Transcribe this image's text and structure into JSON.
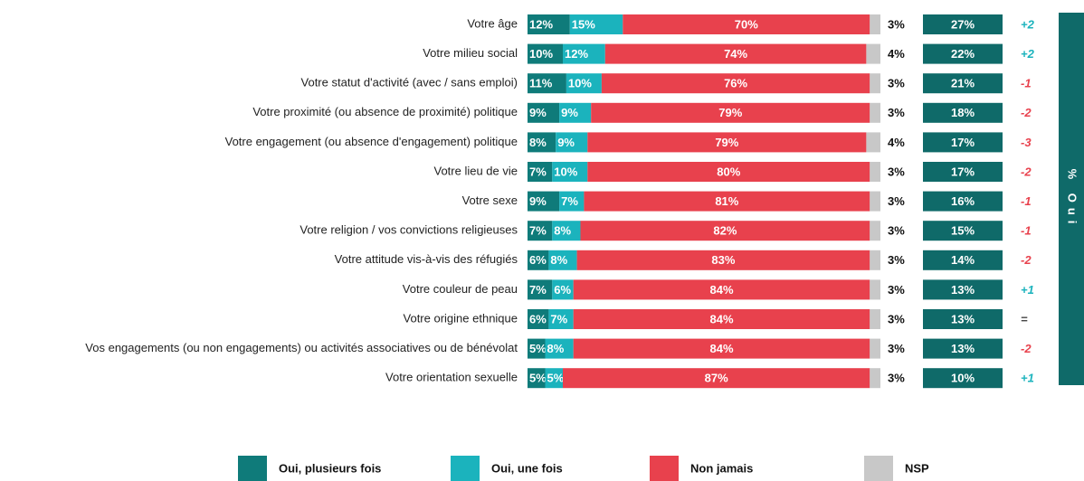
{
  "chart_data": {
    "type": "stacked_bar_horizontal",
    "categories": [
      "Votre âge",
      "Votre milieu social",
      "Votre statut d'activité (avec / sans emploi)",
      "Votre proximité (ou absence de proximité) politique",
      "Votre engagement (ou absence d'engagement) politique",
      "Votre lieu de vie",
      "Votre sexe",
      "Votre religion / vos convictions religieuses",
      "Votre attitude vis-à-vis des réfugiés",
      "Votre couleur de peau",
      "Votre origine ethnique",
      "Vos engagements (ou non engagements) ou activités associatives ou de bénévolat",
      "Votre orientation sexuelle"
    ],
    "xlim": [
      0,
      100
    ],
    "series": [
      {
        "name": "Oui, plusieurs fois",
        "color": "#0f7b7a",
        "values": [
          12,
          10,
          11,
          9,
          8,
          7,
          9,
          7,
          6,
          7,
          6,
          5,
          5
        ],
        "value_labels": [
          "12%",
          "10%",
          "11%",
          "9%",
          "8%",
          "7%",
          "9%",
          "7%",
          "6%",
          "7%",
          "6%",
          "5%",
          "5%"
        ]
      },
      {
        "name": "Oui, une fois",
        "color": "#1bb3bd",
        "values": [
          15,
          12,
          10,
          9,
          9,
          10,
          7,
          8,
          8,
          6,
          7,
          8,
          5
        ],
        "value_labels": [
          "15%",
          "12%",
          "10%",
          "9%",
          "9%",
          "10%",
          "7%",
          "8%",
          "8%",
          "6%",
          "7%",
          "8%",
          "5%"
        ]
      },
      {
        "name": "Non jamais",
        "color": "#e8414d",
        "values": [
          70,
          74,
          76,
          79,
          79,
          80,
          81,
          82,
          83,
          84,
          84,
          84,
          87
        ],
        "value_labels": [
          "70%",
          "74%",
          "76%",
          "79%",
          "79%",
          "80%",
          "81%",
          "82%",
          "83%",
          "84%",
          "84%",
          "84%",
          "87%"
        ]
      },
      {
        "name": "NSP",
        "color": "#c8c8c8",
        "values": [
          3,
          4,
          3,
          3,
          4,
          3,
          3,
          3,
          3,
          3,
          3,
          3,
          3
        ],
        "value_labels": [
          "3%",
          "4%",
          "3%",
          "3%",
          "4%",
          "3%",
          "3%",
          "3%",
          "3%",
          "3%",
          "3%",
          "3%",
          "3%"
        ]
      }
    ],
    "totals": {
      "color": "#0f6a69",
      "values": [
        27,
        22,
        21,
        18,
        17,
        17,
        16,
        15,
        14,
        13,
        13,
        13,
        10
      ],
      "value_labels": [
        "27%",
        "22%",
        "21%",
        "18%",
        "17%",
        "17%",
        "16%",
        "15%",
        "14%",
        "13%",
        "13%",
        "13%",
        "10%"
      ]
    },
    "evolution": [
      "+2",
      "+2",
      "-1",
      "-2",
      "-3",
      "-2",
      "-1",
      "-1",
      "-2",
      "+1",
      "=",
      "-2",
      "+1"
    ],
    "side_label": "% Oui"
  }
}
